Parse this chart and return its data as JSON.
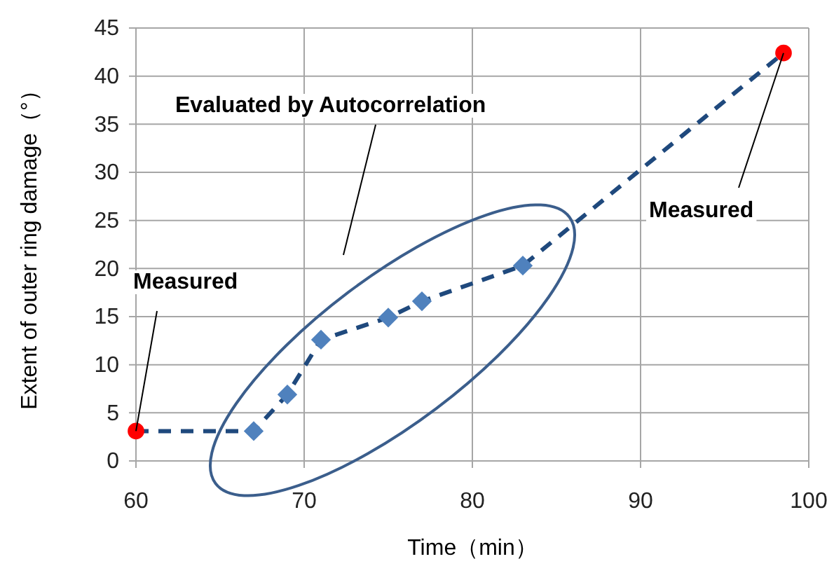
{
  "chart_data": {
    "type": "line",
    "xlabel": "Time（min）",
    "ylabel": "Extent of outer ring damage（°）",
    "xlim": [
      60,
      100
    ],
    "xticks": [
      60,
      70,
      80,
      90,
      100
    ],
    "ylim": [
      0,
      45
    ],
    "yticks": [
      0,
      5,
      10,
      15,
      20,
      25,
      30,
      35,
      40,
      45
    ],
    "grid": true,
    "series": [
      {
        "color": "#1f497d",
        "line_style": "dashed",
        "marker": "none",
        "x": [
          60,
          67,
          69,
          71,
          75,
          77,
          83,
          98.5
        ],
        "values": [
          3.1,
          3.1,
          6.9,
          12.6,
          14.9,
          16.6,
          20.3,
          42.4
        ]
      },
      {
        "type": "scatter",
        "color": "#ff0000",
        "marker": "circle",
        "x": [
          60,
          98.5
        ],
        "values": [
          3.1,
          42.4
        ]
      },
      {
        "type": "scatter",
        "color": "#4f81bd",
        "marker": "diamond",
        "x": [
          67,
          69,
          71,
          75,
          77,
          83
        ],
        "values": [
          3.1,
          6.9,
          12.6,
          14.9,
          16.6,
          20.3
        ]
      }
    ],
    "annotations": [
      {
        "text": "Measured",
        "x": 60,
        "y": 3.1
      },
      {
        "text": "Evaluated by Autocorrelation"
      },
      {
        "text": "Measured",
        "x": 98.5,
        "y": 42.4
      }
    ]
  }
}
